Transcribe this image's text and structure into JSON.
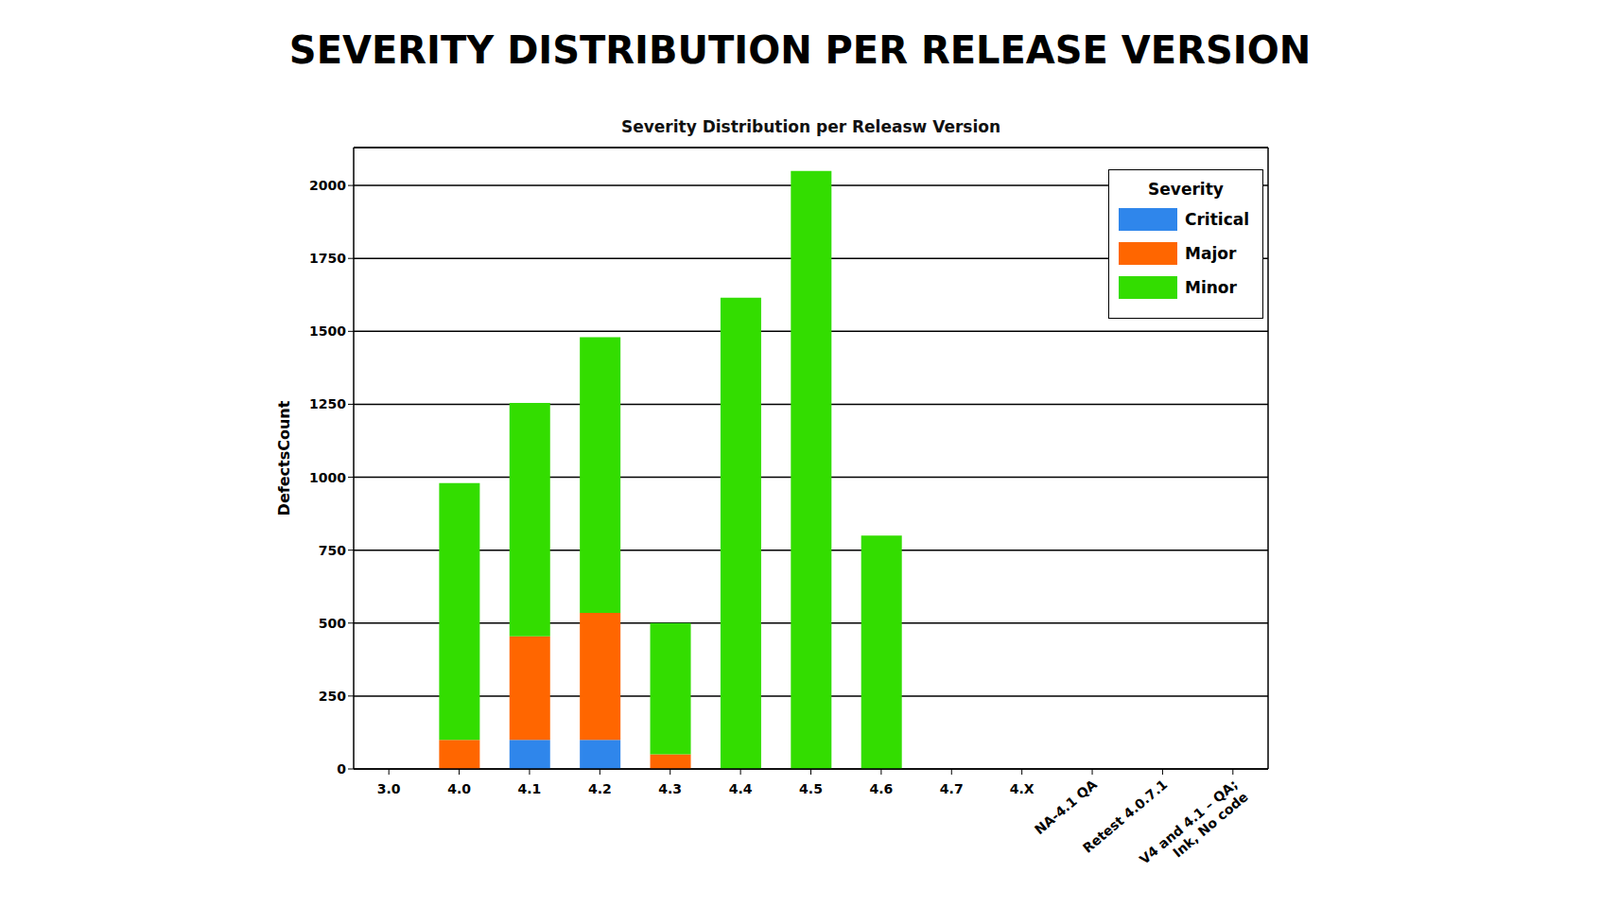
{
  "chart_data": {
    "type": "bar",
    "title": "SEVERITY DISTRIBUTION PER RELEASE VERSION",
    "subtitle": "Severity Distribution per Releasw Version",
    "y_label": "DefectsCount",
    "legend_title": "Severity",
    "categories": [
      "3.0",
      "4.0",
      "4.1",
      "4.2",
      "4.3",
      "4.4",
      "4.5",
      "4.6",
      "4.7",
      "4.X",
      "NA-4.1 QA",
      "Retest 4.0.7.1",
      "V4 and 4.1 – QA; Ink, No code"
    ],
    "series": [
      {
        "name": "Critical",
        "color": "#2f86eb",
        "values": [
          0,
          0,
          100,
          100,
          0,
          0,
          0,
          0,
          0,
          0,
          0,
          0,
          0
        ]
      },
      {
        "name": "Major",
        "color": "#ff6600",
        "values": [
          0,
          100,
          355,
          435,
          50,
          0,
          0,
          0,
          0,
          0,
          0,
          0,
          0
        ]
      },
      {
        "name": "Minor",
        "color": "#33dd00",
        "values": [
          0,
          880,
          800,
          945,
          450,
          1615,
          2050,
          800,
          0,
          0,
          0,
          0,
          0
        ]
      }
    ],
    "ylim": [
      0,
      2130
    ],
    "yticks": [
      0,
      250,
      500,
      750,
      1000,
      1250,
      1500,
      1750,
      2000
    ],
    "grid": true,
    "stacked": true,
    "legend": "upper right"
  }
}
